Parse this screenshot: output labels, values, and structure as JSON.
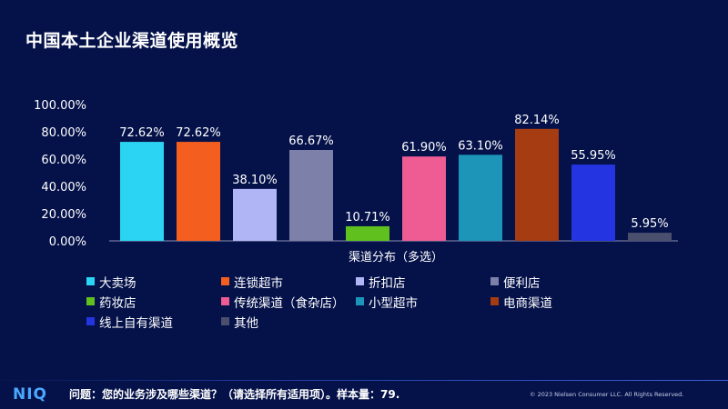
{
  "title": "中国本土企业渠道使用概览",
  "chart_data": {
    "type": "bar",
    "categories": [
      "大卖场",
      "连锁超市",
      "折扣店",
      "便利店",
      "药妆店",
      "传统渠道（食杂店）",
      "小型超市",
      "电商渠道",
      "线上自有渠道",
      "其他"
    ],
    "values": [
      72.62,
      72.62,
      38.1,
      66.67,
      10.71,
      61.9,
      63.1,
      82.14,
      55.95,
      5.95
    ],
    "value_labels": [
      "72.62%",
      "72.62%",
      "38.10%",
      "66.67%",
      "10.71%",
      "61.90%",
      "63.10%",
      "82.14%",
      "55.95%",
      "5.95%"
    ],
    "colors": [
      "#2ad4f2",
      "#f45f1f",
      "#b0b6f5",
      "#7d80a8",
      "#5fc01e",
      "#ee5c93",
      "#1d95b8",
      "#a63c12",
      "#2334e0",
      "#4a4f6e"
    ],
    "xlabel": "渠道分布（多选）",
    "ylabel": "",
    "ylim": [
      0,
      100
    ],
    "yticks": [
      "0.00%",
      "20.00%",
      "40.00%",
      "60.00%",
      "80.00%",
      "100.00%"
    ],
    "grid": false,
    "legend_position": "bottom"
  },
  "footer": {
    "logo": "NIQ",
    "note": "问题：您的业务涉及哪些渠道？（请选择所有适用项）。样本量：79.",
    "copyright": "© 2023 Nielsen Consumer LLC. All Rights Reserved."
  }
}
